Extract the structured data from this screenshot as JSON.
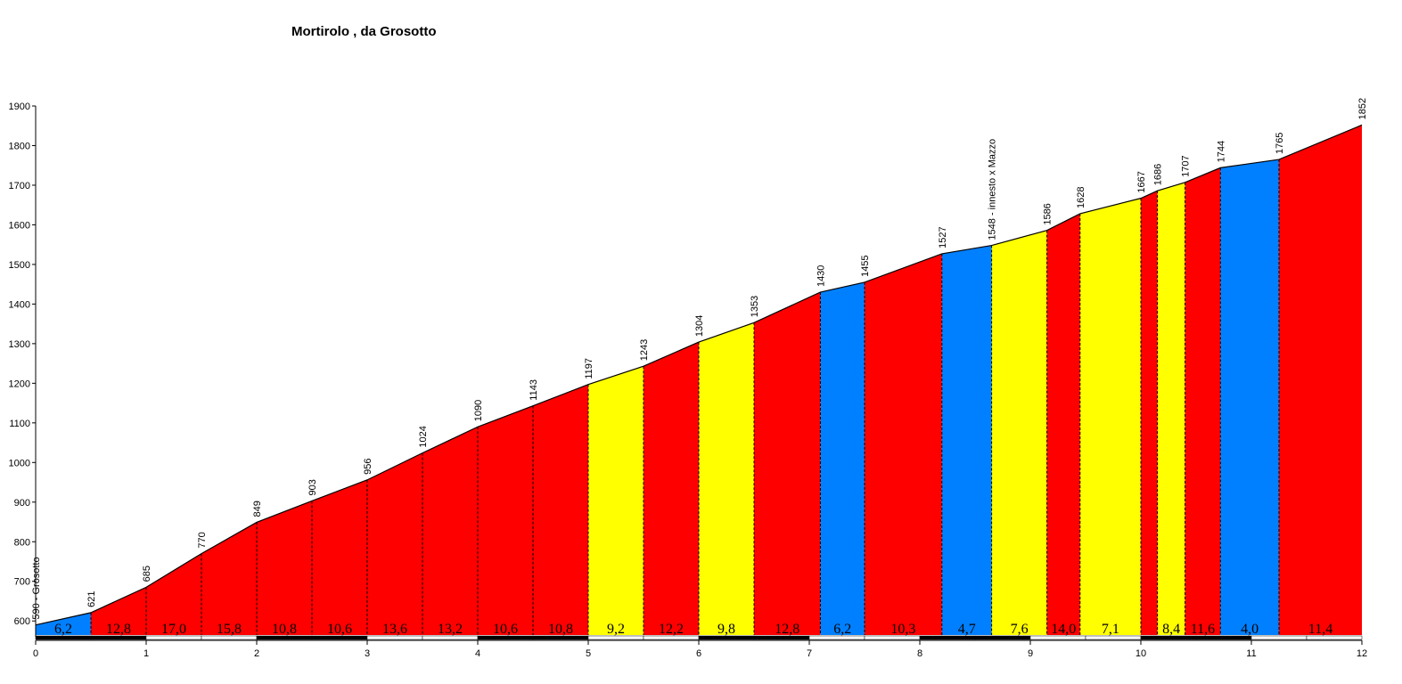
{
  "chart_data": {
    "type": "area",
    "title": "Mortirolo , da Grosotto",
    "xlabel": "",
    "ylabel": "",
    "xlim": [
      0,
      12
    ],
    "ylim": [
      560,
      1900
    ],
    "x_ticks": [
      "0",
      "1",
      "2",
      "3",
      "4",
      "5",
      "6",
      "7",
      "8",
      "9",
      "10",
      "11",
      "12"
    ],
    "y_ticks": [
      "600",
      "700",
      "800",
      "900",
      "1000",
      "1100",
      "1200",
      "1300",
      "1400",
      "1500",
      "1600",
      "1700",
      "1800",
      "1900"
    ],
    "colors": {
      "blue": "#0080ff",
      "red": "#ff0000",
      "yellow": "#ffff00",
      "dark": "#000000"
    },
    "points": [
      {
        "x": 0.0,
        "y": 590,
        "label": "590 - Grosotto"
      },
      {
        "x": 0.5,
        "y": 621,
        "label": "621"
      },
      {
        "x": 1.0,
        "y": 685,
        "label": "685"
      },
      {
        "x": 1.5,
        "y": 770,
        "label": "770"
      },
      {
        "x": 2.0,
        "y": 849,
        "label": "849"
      },
      {
        "x": 2.5,
        "y": 903,
        "label": "903"
      },
      {
        "x": 3.0,
        "y": 956,
        "label": "956"
      },
      {
        "x": 3.5,
        "y": 1024,
        "label": "1024"
      },
      {
        "x": 4.0,
        "y": 1090,
        "label": "1090"
      },
      {
        "x": 4.5,
        "y": 1143,
        "label": "1143"
      },
      {
        "x": 5.0,
        "y": 1197,
        "label": "1197"
      },
      {
        "x": 5.5,
        "y": 1243,
        "label": "1243"
      },
      {
        "x": 6.0,
        "y": 1304,
        "label": "1304"
      },
      {
        "x": 6.5,
        "y": 1353,
        "label": "1353"
      },
      {
        "x": 7.1,
        "y": 1430,
        "label": "1430"
      },
      {
        "x": 7.5,
        "y": 1455,
        "label": "1455"
      },
      {
        "x": 8.2,
        "y": 1527,
        "label": "1527"
      },
      {
        "x": 8.65,
        "y": 1548,
        "label": "1548 - innesto x Mazzo"
      },
      {
        "x": 9.15,
        "y": 1586,
        "label": "1586"
      },
      {
        "x": 9.45,
        "y": 1628,
        "label": "1628"
      },
      {
        "x": 10.0,
        "y": 1667,
        "label": "1667"
      },
      {
        "x": 10.15,
        "y": 1686,
        "label": "1686"
      },
      {
        "x": 10.4,
        "y": 1707,
        "label": "1707"
      },
      {
        "x": 10.72,
        "y": 1744,
        "label": "1744"
      },
      {
        "x": 11.25,
        "y": 1765,
        "label": "1765"
      },
      {
        "x": 12.0,
        "y": 1852,
        "label": "1852"
      }
    ],
    "segments": [
      {
        "grade": "6,2",
        "color": "blue"
      },
      {
        "grade": "12,8",
        "color": "red"
      },
      {
        "grade": "17,0",
        "color": "red"
      },
      {
        "grade": "15,8",
        "color": "red"
      },
      {
        "grade": "10,8",
        "color": "red"
      },
      {
        "grade": "10,6",
        "color": "red"
      },
      {
        "grade": "13,6",
        "color": "red"
      },
      {
        "grade": "13,2",
        "color": "red"
      },
      {
        "grade": "10,6",
        "color": "red"
      },
      {
        "grade": "10,8",
        "color": "red"
      },
      {
        "grade": "9,2",
        "color": "yellow"
      },
      {
        "grade": "12,2",
        "color": "red"
      },
      {
        "grade": "9,8",
        "color": "yellow"
      },
      {
        "grade": "12,8",
        "color": "red"
      },
      {
        "grade": "6,2",
        "color": "blue"
      },
      {
        "grade": "10,3",
        "color": "red"
      },
      {
        "grade": "4,7",
        "color": "blue"
      },
      {
        "grade": "7,6",
        "color": "yellow"
      },
      {
        "grade": "14,0",
        "color": "red"
      },
      {
        "grade": "7,1",
        "color": "yellow"
      },
      {
        "grade": "",
        "color": "red"
      },
      {
        "grade": "8,4",
        "color": "yellow"
      },
      {
        "grade": "11,6",
        "color": "red"
      },
      {
        "grade": "4,0",
        "color": "blue"
      },
      {
        "grade": "11,4",
        "color": "red"
      }
    ]
  }
}
